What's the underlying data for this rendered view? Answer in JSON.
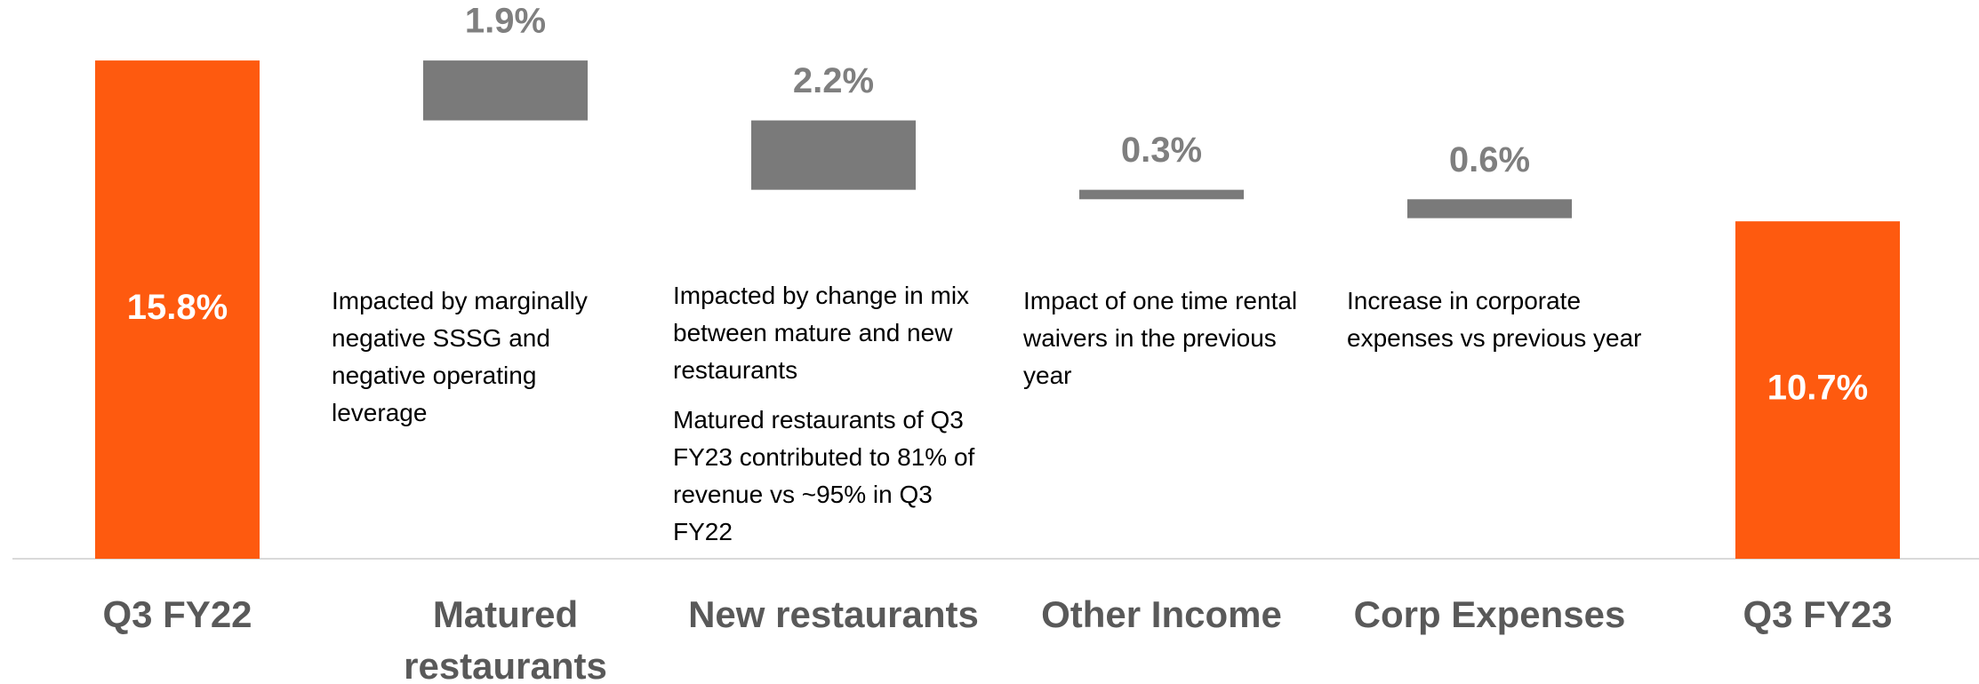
{
  "chart_data": {
    "type": "waterfall",
    "categories": [
      "Q3 FY22",
      "Matured restaurants",
      "New restaurants",
      "Other Income",
      "Corp Expenses",
      "Q3 FY23"
    ],
    "values": [
      15.8,
      1.9,
      2.2,
      0.3,
      0.6,
      10.7
    ],
    "value_labels": [
      "15.8%",
      "1.9%",
      "2.2%",
      "0.3%",
      "0.6%",
      "10.7%"
    ],
    "measures": [
      "absolute",
      "decrease",
      "decrease",
      "decrease",
      "decrease",
      "absolute"
    ],
    "colors": {
      "absolute": "#fe5a0f",
      "decrease": "#7a7a7a"
    },
    "ylim": [
      0,
      16
    ],
    "notes": [
      null,
      [
        "Impacted by marginally negative SSSG and negative operating leverage"
      ],
      [
        "Impacted by change in mix between mature and new restaurants",
        "Matured restaurants of Q3 FY23 contributed to 81% of revenue vs ~95% in Q3 FY22"
      ],
      [
        "Impact of one time rental waivers in the previous year"
      ],
      [
        "Increase in corporate expenses vs previous year"
      ],
      null
    ]
  }
}
